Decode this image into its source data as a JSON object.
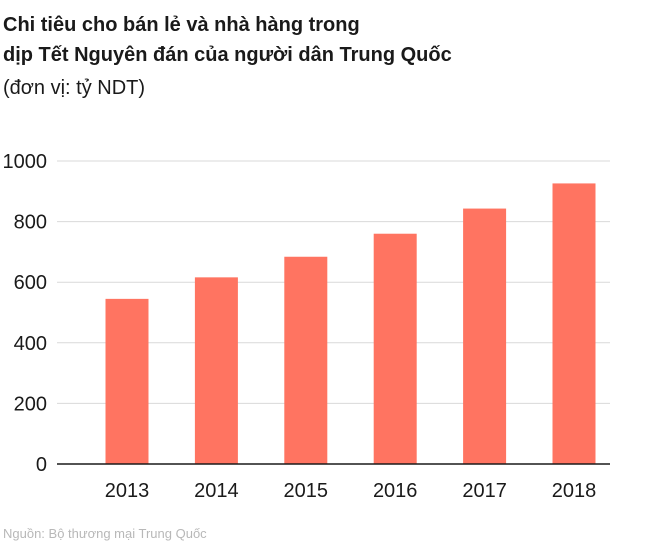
{
  "title_line1": "Chi tiêu cho bán lẻ và nhà hàng trong",
  "title_line2": "dịp Tết Nguyên đán của người dân Trung Quốc",
  "subtitle": "(đơn vị: tỷ NDT)",
  "source": "Nguồn: Bộ thương mại Trung Quốc",
  "colors": {
    "bar": "#ff7461",
    "grid": "#d9d9d9",
    "axis": "#1a1a1a"
  },
  "chart_data": {
    "type": "bar",
    "categories": [
      "2013",
      "2014",
      "2015",
      "2016",
      "2017",
      "2018"
    ],
    "values": [
      545,
      616,
      684,
      760,
      843,
      926
    ],
    "ylim": [
      0,
      1000
    ],
    "yticks": [
      "0",
      "200",
      "400",
      "600",
      "800",
      "1000"
    ],
    "grid": true
  }
}
